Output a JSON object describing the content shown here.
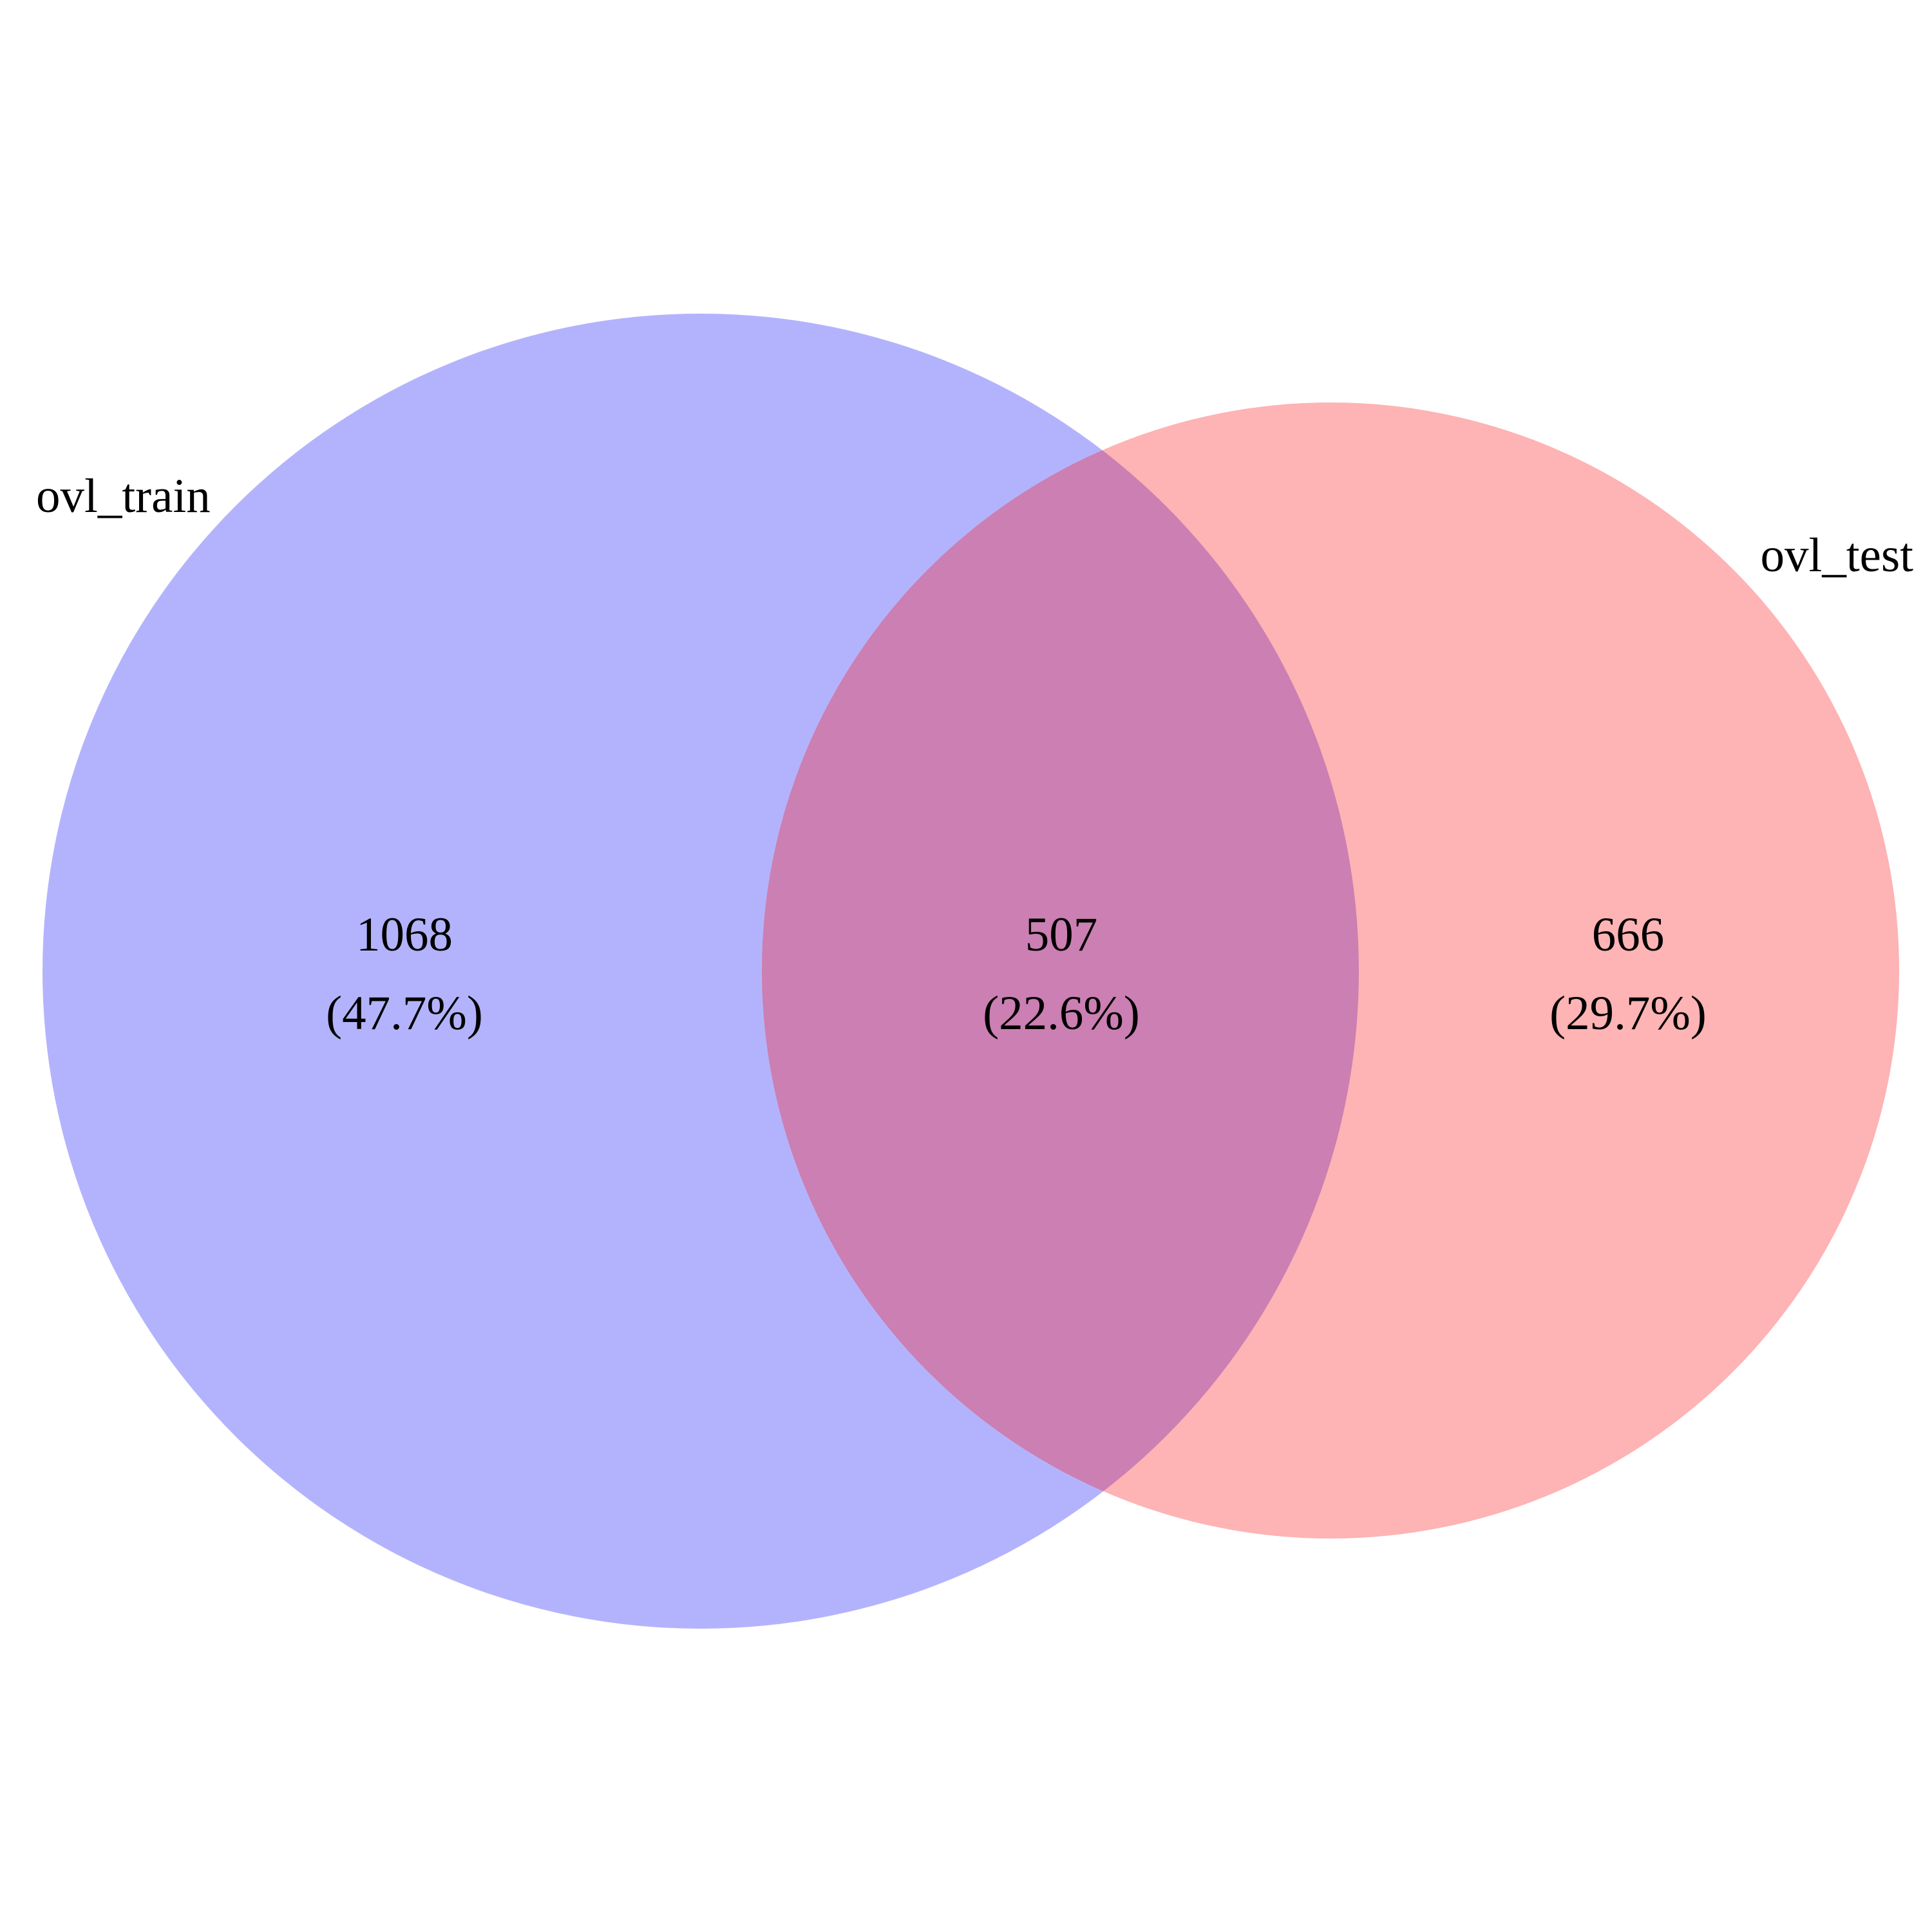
{
  "sets": [
    {
      "key": "a",
      "name": "ovl_train",
      "only_count": "1068",
      "only_percent": "(47.7%)",
      "color": "#b3b3fd"
    },
    {
      "key": "b",
      "name": "ovl_test",
      "only_count": "666",
      "only_percent": "(29.7%)",
      "color": "#feb3b4"
    }
  ],
  "intersection": {
    "count": "507",
    "percent": "(22.6%)",
    "color": "#cb7fb2"
  }
}
